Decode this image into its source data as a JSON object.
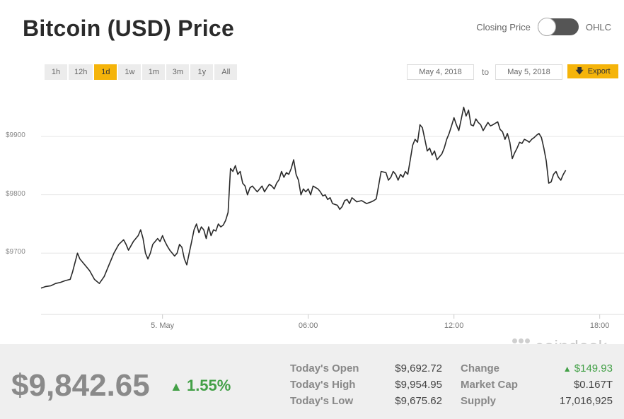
{
  "header": {
    "title": "Bitcoin (USD) Price",
    "toggle_left": "Closing Price",
    "toggle_right": "OHLC"
  },
  "ranges": [
    "1h",
    "12h",
    "1d",
    "1w",
    "1m",
    "3m",
    "1y",
    "All"
  ],
  "active_range": "1d",
  "date_from": "May 4, 2018",
  "date_to_label": "to",
  "date_to": "May 5, 2018",
  "export_label": "Export",
  "watermark": "coindesk",
  "colors": {
    "accent": "#f5b40a",
    "line": "#2a2a2a",
    "positive": "#43a047"
  },
  "chart_data": {
    "type": "line",
    "title": "",
    "xlabel": "",
    "ylabel": "",
    "ylim": [
      9595,
      9980
    ],
    "yticks": [
      9700,
      9800,
      9900
    ],
    "ytick_labels": [
      "$9700",
      "$9800",
      "$9900"
    ],
    "xticks": [
      4,
      10,
      16,
      22
    ],
    "xtick_labels": [
      "5. May",
      "06:00",
      "12:00",
      "18:00"
    ],
    "x_units": "hours since May 5, 2018 00:00",
    "grid": true,
    "series": [
      {
        "values": [
          [
            -1.0,
            9640
          ],
          [
            -0.8,
            9643
          ],
          [
            -0.6,
            9644
          ],
          [
            -0.4,
            9648
          ],
          [
            -0.2,
            9650
          ],
          [
            0.0,
            9653
          ],
          [
            0.2,
            9655
          ],
          [
            0.3,
            9668
          ],
          [
            0.5,
            9700
          ],
          [
            0.6,
            9690
          ],
          [
            0.8,
            9680
          ],
          [
            1.0,
            9670
          ],
          [
            1.2,
            9655
          ],
          [
            1.4,
            9648
          ],
          [
            1.6,
            9660
          ],
          [
            1.8,
            9680
          ],
          [
            2.0,
            9700
          ],
          [
            2.2,
            9715
          ],
          [
            2.4,
            9723
          ],
          [
            2.5,
            9715
          ],
          [
            2.6,
            9705
          ],
          [
            2.8,
            9720
          ],
          [
            3.0,
            9730
          ],
          [
            3.1,
            9740
          ],
          [
            3.2,
            9725
          ],
          [
            3.3,
            9700
          ],
          [
            3.4,
            9690
          ],
          [
            3.5,
            9700
          ],
          [
            3.6,
            9715
          ],
          [
            3.8,
            9725
          ],
          [
            3.9,
            9720
          ],
          [
            4.0,
            9730
          ],
          [
            4.1,
            9720
          ],
          [
            4.2,
            9712
          ],
          [
            4.3,
            9705
          ],
          [
            4.4,
            9700
          ],
          [
            4.5,
            9695
          ],
          [
            4.6,
            9700
          ],
          [
            4.7,
            9715
          ],
          [
            4.8,
            9710
          ],
          [
            4.9,
            9690
          ],
          [
            5.0,
            9680
          ],
          [
            5.1,
            9700
          ],
          [
            5.2,
            9720
          ],
          [
            5.3,
            9740
          ],
          [
            5.4,
            9750
          ],
          [
            5.5,
            9735
          ],
          [
            5.6,
            9745
          ],
          [
            5.7,
            9740
          ],
          [
            5.8,
            9725
          ],
          [
            5.9,
            9745
          ],
          [
            6.0,
            9730
          ],
          [
            6.1,
            9740
          ],
          [
            6.2,
            9738
          ],
          [
            6.3,
            9750
          ],
          [
            6.4,
            9745
          ],
          [
            6.5,
            9748
          ],
          [
            6.6,
            9756
          ],
          [
            6.7,
            9770
          ],
          [
            6.8,
            9845
          ],
          [
            6.9,
            9840
          ],
          [
            7.0,
            9850
          ],
          [
            7.1,
            9835
          ],
          [
            7.2,
            9840
          ],
          [
            7.3,
            9820
          ],
          [
            7.4,
            9815
          ],
          [
            7.5,
            9800
          ],
          [
            7.6,
            9812
          ],
          [
            7.7,
            9815
          ],
          [
            7.8,
            9810
          ],
          [
            7.9,
            9805
          ],
          [
            8.0,
            9810
          ],
          [
            8.1,
            9815
          ],
          [
            8.2,
            9805
          ],
          [
            8.3,
            9812
          ],
          [
            8.4,
            9818
          ],
          [
            8.5,
            9815
          ],
          [
            8.6,
            9810
          ],
          [
            8.7,
            9820
          ],
          [
            8.8,
            9826
          ],
          [
            8.9,
            9840
          ],
          [
            9.0,
            9830
          ],
          [
            9.1,
            9838
          ],
          [
            9.2,
            9835
          ],
          [
            9.3,
            9845
          ],
          [
            9.4,
            9860
          ],
          [
            9.5,
            9835
          ],
          [
            9.6,
            9825
          ],
          [
            9.7,
            9800
          ],
          [
            9.8,
            9810
          ],
          [
            9.9,
            9805
          ],
          [
            10.0,
            9810
          ],
          [
            10.1,
            9800
          ],
          [
            10.2,
            9815
          ],
          [
            10.4,
            9810
          ],
          [
            10.5,
            9805
          ],
          [
            10.6,
            9798
          ],
          [
            10.7,
            9800
          ],
          [
            10.8,
            9792
          ],
          [
            10.9,
            9795
          ],
          [
            11.0,
            9785
          ],
          [
            11.2,
            9782
          ],
          [
            11.3,
            9775
          ],
          [
            11.4,
            9780
          ],
          [
            11.5,
            9790
          ],
          [
            11.6,
            9792
          ],
          [
            11.7,
            9785
          ],
          [
            11.8,
            9795
          ],
          [
            12.0,
            9788
          ],
          [
            12.2,
            9790
          ],
          [
            12.4,
            9785
          ],
          [
            12.6,
            9788
          ],
          [
            12.7,
            9790
          ],
          [
            12.8,
            9793
          ],
          [
            13.0,
            9840
          ],
          [
            13.2,
            9838
          ],
          [
            13.3,
            9825
          ],
          [
            13.4,
            9830
          ],
          [
            13.5,
            9840
          ],
          [
            13.6,
            9835
          ],
          [
            13.7,
            9825
          ],
          [
            13.8,
            9835
          ],
          [
            13.9,
            9830
          ],
          [
            14.0,
            9840
          ],
          [
            14.1,
            9835
          ],
          [
            14.2,
            9860
          ],
          [
            14.3,
            9885
          ],
          [
            14.4,
            9895
          ],
          [
            14.5,
            9890
          ],
          [
            14.6,
            9920
          ],
          [
            14.7,
            9915
          ],
          [
            14.8,
            9895
          ],
          [
            14.9,
            9875
          ],
          [
            15.0,
            9880
          ],
          [
            15.1,
            9868
          ],
          [
            15.2,
            9875
          ],
          [
            15.3,
            9860
          ],
          [
            15.4,
            9865
          ],
          [
            15.5,
            9870
          ],
          [
            15.6,
            9880
          ],
          [
            15.7,
            9895
          ],
          [
            15.8,
            9905
          ],
          [
            15.9,
            9918
          ],
          [
            16.0,
            9932
          ],
          [
            16.1,
            9920
          ],
          [
            16.2,
            9910
          ],
          [
            16.3,
            9930
          ],
          [
            16.4,
            9950
          ],
          [
            16.5,
            9935
          ],
          [
            16.6,
            9945
          ],
          [
            16.7,
            9920
          ],
          [
            16.8,
            9918
          ],
          [
            16.9,
            9930
          ],
          [
            17.0,
            9924
          ],
          [
            17.1,
            9920
          ],
          [
            17.2,
            9910
          ],
          [
            17.4,
            9924
          ],
          [
            17.5,
            9918
          ],
          [
            17.6,
            9920
          ],
          [
            17.8,
            9925
          ],
          [
            17.9,
            9912
          ],
          [
            18.0,
            9908
          ],
          [
            18.1,
            9895
          ],
          [
            18.2,
            9905
          ],
          [
            18.3,
            9890
          ],
          [
            18.4,
            9862
          ],
          [
            18.5,
            9872
          ],
          [
            18.6,
            9880
          ],
          [
            18.7,
            9890
          ],
          [
            18.8,
            9888
          ],
          [
            18.9,
            9895
          ],
          [
            19.0,
            9893
          ],
          [
            19.1,
            9890
          ],
          [
            19.2,
            9895
          ],
          [
            19.3,
            9898
          ],
          [
            19.4,
            9902
          ],
          [
            19.5,
            9905
          ],
          [
            19.6,
            9898
          ],
          [
            19.7,
            9880
          ],
          [
            19.8,
            9858
          ],
          [
            19.9,
            9820
          ],
          [
            20.0,
            9822
          ],
          [
            20.1,
            9835
          ],
          [
            20.2,
            9840
          ],
          [
            20.3,
            9830
          ],
          [
            20.4,
            9825
          ],
          [
            20.5,
            9835
          ],
          [
            20.6,
            9842
          ]
        ]
      }
    ]
  },
  "footer": {
    "price": "$9,842.65",
    "change_pct": "1.55%",
    "stats_left": [
      {
        "label": "Today's Open",
        "value": "$9,692.72"
      },
      {
        "label": "Today's High",
        "value": "$9,954.95"
      },
      {
        "label": "Today's Low",
        "value": "$9,675.62"
      }
    ],
    "stats_right": [
      {
        "label": "Change",
        "value": "$149.93",
        "positive": true
      },
      {
        "label": "Market Cap",
        "value": "$0.167T",
        "positive": false
      },
      {
        "label": "Supply",
        "value": "17,016,925",
        "positive": false
      }
    ]
  }
}
